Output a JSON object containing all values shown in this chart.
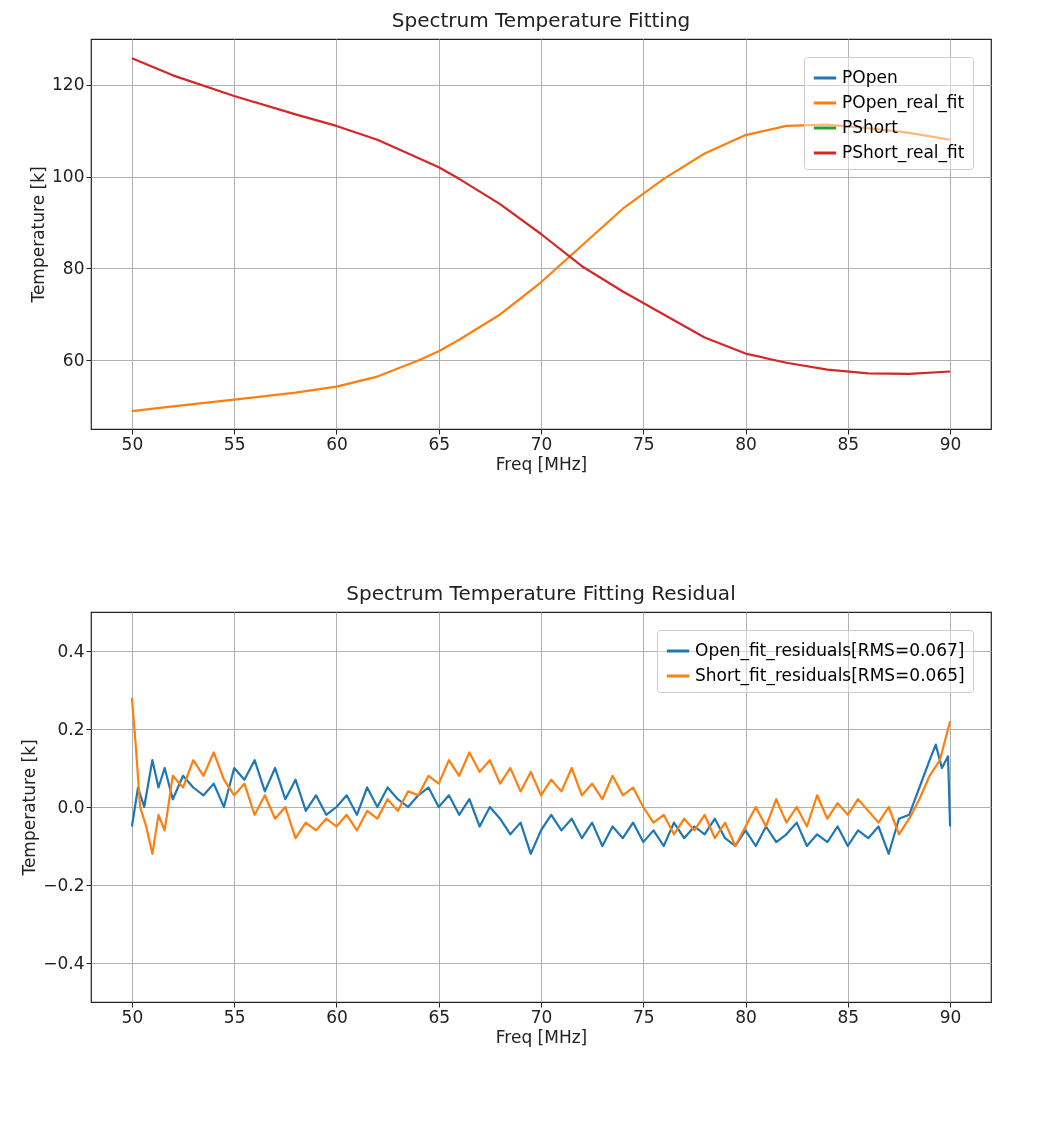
{
  "chart_data": [
    {
      "type": "line",
      "title": "Spectrum Temperature Fitting",
      "xlabel": "Freq [MHz]",
      "ylabel": "Temperature [k]",
      "xlim": [
        48,
        92
      ],
      "ylim": [
        45.1,
        129.9
      ],
      "xticks": [
        50,
        55,
        60,
        65,
        70,
        75,
        80,
        85,
        90
      ],
      "yticks": [
        60,
        80,
        100,
        120
      ],
      "grid": true,
      "legend": "top right",
      "x": [
        50,
        52,
        55,
        58,
        60,
        62,
        64,
        65,
        66,
        68,
        70,
        72,
        74,
        76,
        78,
        80,
        82,
        84,
        86,
        88,
        90
      ],
      "series": [
        {
          "name": "POpen",
          "color": "#1f77b4",
          "values": [
            null,
            null,
            null,
            null,
            null,
            null,
            null,
            null,
            null,
            null,
            null,
            null,
            null,
            null,
            null,
            null,
            null,
            null,
            null,
            null,
            null
          ]
        },
        {
          "name": "POpen_real_fit",
          "color": "#ff7f0e",
          "values": [
            49,
            50,
            51.5,
            53,
            54.3,
            56.5,
            60,
            62,
            64.5,
            70,
            77,
            85,
            93,
            99.5,
            105,
            109,
            111,
            111.3,
            110.5,
            109.5,
            108
          ]
        },
        {
          "name": "PShort",
          "color": "#2ca02c",
          "values": [
            null,
            null,
            null,
            null,
            null,
            null,
            null,
            null,
            null,
            null,
            null,
            null,
            null,
            null,
            null,
            null,
            null,
            null,
            null,
            null,
            null
          ]
        },
        {
          "name": "PShort_real_fit",
          "color": "#d62728",
          "values": [
            125.7,
            122,
            117.5,
            113.5,
            111,
            108,
            104,
            102,
            99.5,
            94,
            87.5,
            80.5,
            75,
            70,
            65,
            61.5,
            59.5,
            58,
            57.2,
            57.1,
            57.6
          ]
        }
      ]
    },
    {
      "type": "line",
      "title": "Spectrum Temperature Fitting Residual",
      "xlabel": "Freq [MHz]",
      "ylabel": "Temperature [k]",
      "xlim": [
        48,
        92
      ],
      "ylim": [
        -0.5,
        0.5
      ],
      "xticks": [
        50,
        55,
        60,
        65,
        70,
        75,
        80,
        85,
        90
      ],
      "yticks": [
        {
          "value": -0.4,
          "label": "−0.4"
        },
        {
          "value": -0.2,
          "label": "−0.2"
        },
        {
          "value": 0,
          "label": "0.0"
        },
        {
          "value": 0.2,
          "label": "0.2"
        },
        {
          "value": 0.4,
          "label": "0.4"
        }
      ],
      "grid": true,
      "legend": "top right",
      "series": [
        {
          "name": "Open_fit_residuals[RMS=0.067]",
          "color": "#1f77b4",
          "x": [
            50,
            50.3,
            50.6,
            51,
            51.3,
            51.6,
            52,
            52.5,
            53,
            53.5,
            54,
            54.5,
            55,
            55.5,
            56,
            56.5,
            57,
            57.5,
            58,
            58.5,
            59,
            59.5,
            60,
            60.5,
            61,
            61.5,
            62,
            62.5,
            63,
            63.5,
            64,
            64.5,
            65,
            65.5,
            66,
            66.5,
            67,
            67.5,
            68,
            68.5,
            69,
            69.5,
            70,
            70.5,
            71,
            71.5,
            72,
            72.5,
            73,
            73.5,
            74,
            74.5,
            75,
            75.5,
            76,
            76.5,
            77,
            77.5,
            78,
            78.5,
            79,
            79.5,
            80,
            80.5,
            81,
            81.5,
            82,
            82.5,
            83,
            83.5,
            84,
            84.5,
            85,
            85.5,
            86,
            86.5,
            87,
            87.5,
            88,
            88.5,
            89,
            89.3,
            89.6,
            89.9,
            90
          ],
          "values": [
            -0.05,
            0.05,
            0.0,
            0.12,
            0.05,
            0.1,
            0.02,
            0.08,
            0.05,
            0.03,
            0.06,
            0.0,
            0.1,
            0.07,
            0.12,
            0.04,
            0.1,
            0.02,
            0.07,
            -0.01,
            0.03,
            -0.02,
            0.0,
            0.03,
            -0.02,
            0.05,
            0.0,
            0.05,
            0.02,
            0.0,
            0.03,
            0.05,
            0.0,
            0.03,
            -0.02,
            0.02,
            -0.05,
            0.0,
            -0.03,
            -0.07,
            -0.04,
            -0.12,
            -0.06,
            -0.02,
            -0.06,
            -0.03,
            -0.08,
            -0.04,
            -0.1,
            -0.05,
            -0.08,
            -0.04,
            -0.09,
            -0.06,
            -0.1,
            -0.04,
            -0.08,
            -0.05,
            -0.07,
            -0.03,
            -0.08,
            -0.1,
            -0.06,
            -0.1,
            -0.05,
            -0.09,
            -0.07,
            -0.04,
            -0.1,
            -0.07,
            -0.09,
            -0.05,
            -0.1,
            -0.06,
            -0.08,
            -0.05,
            -0.12,
            -0.03,
            -0.02,
            0.05,
            0.12,
            0.16,
            0.1,
            0.13,
            -0.05
          ]
        },
        {
          "name": "Short_fit_residuals[RMS=0.065]",
          "color": "#ff7f0e",
          "x": [
            50,
            50.2,
            50.4,
            50.7,
            51,
            51.3,
            51.6,
            52,
            52.5,
            53,
            53.5,
            54,
            54.5,
            55,
            55.5,
            56,
            56.5,
            57,
            57.5,
            58,
            58.5,
            59,
            59.5,
            60,
            60.5,
            61,
            61.5,
            62,
            62.5,
            63,
            63.5,
            64,
            64.5,
            65,
            65.5,
            66,
            66.5,
            67,
            67.5,
            68,
            68.5,
            69,
            69.5,
            70,
            70.5,
            71,
            71.5,
            72,
            72.5,
            73,
            73.5,
            74,
            74.5,
            75,
            75.5,
            76,
            76.5,
            77,
            77.5,
            78,
            78.5,
            79,
            79.5,
            80,
            80.5,
            81,
            81.5,
            82,
            82.5,
            83,
            83.5,
            84,
            84.5,
            85,
            85.5,
            86,
            86.5,
            87,
            87.5,
            88,
            88.5,
            89,
            89.5,
            90
          ],
          "values": [
            0.28,
            0.15,
            0.0,
            -0.05,
            -0.12,
            -0.02,
            -0.06,
            0.08,
            0.05,
            0.12,
            0.08,
            0.14,
            0.07,
            0.03,
            0.06,
            -0.02,
            0.03,
            -0.03,
            0.0,
            -0.08,
            -0.04,
            -0.06,
            -0.03,
            -0.05,
            -0.02,
            -0.06,
            -0.01,
            -0.03,
            0.02,
            -0.01,
            0.04,
            0.03,
            0.08,
            0.06,
            0.12,
            0.08,
            0.14,
            0.09,
            0.12,
            0.06,
            0.1,
            0.04,
            0.09,
            0.03,
            0.07,
            0.04,
            0.1,
            0.03,
            0.06,
            0.02,
            0.08,
            0.03,
            0.05,
            0.0,
            -0.04,
            -0.02,
            -0.07,
            -0.03,
            -0.06,
            -0.02,
            -0.08,
            -0.04,
            -0.1,
            -0.05,
            0.0,
            -0.05,
            0.02,
            -0.04,
            0.0,
            -0.05,
            0.03,
            -0.03,
            0.01,
            -0.02,
            0.02,
            -0.01,
            -0.04,
            0.0,
            -0.07,
            -0.03,
            0.02,
            0.08,
            0.12,
            0.22
          ]
        }
      ]
    }
  ]
}
